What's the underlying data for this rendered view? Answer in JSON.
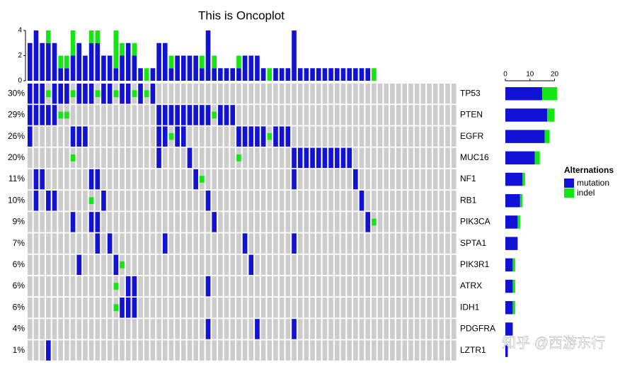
{
  "chart_data": {
    "type": "oncoplot",
    "title": "This is Oncoplot",
    "colors": {
      "mutation": "#1212d6",
      "indel": "#14e614",
      "none": "#cccccc"
    },
    "top_bar": {
      "ylim": [
        0,
        4
      ],
      "yticks": [
        0,
        2,
        4
      ],
      "mutation": [
        3,
        4,
        3,
        3,
        3,
        1,
        1,
        2,
        3,
        2,
        3,
        3,
        2,
        2,
        1,
        2,
        3,
        2,
        1,
        0,
        1,
        3,
        3,
        1,
        2,
        2,
        2,
        2,
        1,
        4,
        1,
        1,
        1,
        1,
        1,
        2,
        2,
        2,
        1,
        0,
        1,
        1,
        1,
        4,
        1,
        1,
        1,
        1,
        1,
        1,
        1,
        1,
        1,
        1,
        1,
        1,
        0,
        0,
        0,
        0,
        0,
        0,
        0,
        0,
        0,
        0,
        0,
        0,
        0,
        0
      ],
      "indel": [
        0,
        0,
        0,
        1,
        0,
        1,
        1,
        2,
        0,
        0,
        1,
        1,
        0,
        0,
        3,
        1,
        0,
        1,
        0,
        1,
        0,
        0,
        0,
        1,
        0,
        0,
        0,
        0,
        1,
        0,
        1,
        0,
        0,
        0,
        1,
        0,
        0,
        0,
        0,
        1,
        0,
        0,
        0,
        0,
        0,
        0,
        0,
        0,
        0,
        0,
        0,
        0,
        0,
        0,
        0,
        0,
        1,
        0,
        0,
        0,
        0,
        0,
        0,
        0,
        0,
        0,
        0,
        0,
        0,
        0
      ]
    },
    "right_bar": {
      "xlim": [
        0,
        22
      ],
      "xticks": [
        0,
        10,
        20
      ]
    },
    "genes": [
      {
        "name": "TP53",
        "pct_label": "30%",
        "mutation": [
          0,
          1,
          2,
          4,
          5,
          6,
          8,
          9,
          10,
          12,
          13,
          15,
          16,
          18,
          20
        ],
        "indel": [
          3,
          7,
          11,
          14,
          17,
          19
        ],
        "mutation_count": 15,
        "indel_count": 6
      },
      {
        "name": "PTEN",
        "pct_label": "29%",
        "mutation": [
          0,
          1,
          2,
          3,
          4,
          21,
          22,
          23,
          24,
          25,
          26,
          27,
          28,
          29,
          31,
          32,
          33
        ],
        "indel": [
          5,
          6,
          30
        ],
        "mutation_count": 17,
        "indel_count": 3
      },
      {
        "name": "EGFR",
        "pct_label": "26%",
        "mutation": [
          0,
          7,
          8,
          9,
          21,
          22,
          24,
          25,
          34,
          35,
          36,
          37,
          38,
          40,
          41,
          42
        ],
        "indel": [
          23,
          39
        ],
        "mutation_count": 16,
        "indel_count": 2
      },
      {
        "name": "MUC16",
        "pct_label": "20%",
        "mutation": [
          21,
          26,
          43,
          44,
          45,
          46,
          47,
          48,
          49,
          50,
          51,
          52
        ],
        "indel": [
          7,
          34
        ],
        "mutation_count": 12,
        "indel_count": 2
      },
      {
        "name": "NF1",
        "pct_label": "11%",
        "mutation": [
          1,
          2,
          10,
          11,
          27,
          43,
          53
        ],
        "indel": [
          28
        ],
        "mutation_count": 7,
        "indel_count": 1
      },
      {
        "name": "RB1",
        "pct_label": "10%",
        "mutation": [
          1,
          3,
          4,
          12,
          29,
          54
        ],
        "indel": [
          10
        ],
        "mutation_count": 6,
        "indel_count": 1
      },
      {
        "name": "PIK3CA",
        "pct_label": "9%",
        "mutation": [
          7,
          10,
          11,
          30,
          55
        ],
        "indel": [
          56
        ],
        "mutation_count": 5,
        "indel_count": 1
      },
      {
        "name": "SPTA1",
        "pct_label": "7%",
        "mutation": [
          11,
          13,
          22,
          35,
          43
        ],
        "indel": [],
        "mutation_count": 5,
        "indel_count": 0
      },
      {
        "name": "PIK3R1",
        "pct_label": "6%",
        "mutation": [
          8,
          14,
          36
        ],
        "indel": [
          15
        ],
        "mutation_count": 3,
        "indel_count": 1
      },
      {
        "name": "ATRX",
        "pct_label": "6%",
        "mutation": [
          16,
          17,
          29
        ],
        "indel": [
          14
        ],
        "mutation_count": 3,
        "indel_count": 1
      },
      {
        "name": "IDH1",
        "pct_label": "6%",
        "mutation": [
          15,
          16,
          17
        ],
        "indel": [
          14
        ],
        "mutation_count": 3,
        "indel_count": 1
      },
      {
        "name": "PDGFRA",
        "pct_label": "4%",
        "mutation": [
          29,
          37,
          43
        ],
        "indel": [],
        "mutation_count": 3,
        "indel_count": 0
      },
      {
        "name": "LZTR1",
        "pct_label": "1%",
        "mutation": [
          3
        ],
        "indel": [],
        "mutation_count": 1,
        "indel_count": 0
      }
    ],
    "legend": {
      "title": "Alternations",
      "items": [
        "mutation",
        "indel"
      ]
    },
    "watermark": "知乎 @西游东行"
  }
}
